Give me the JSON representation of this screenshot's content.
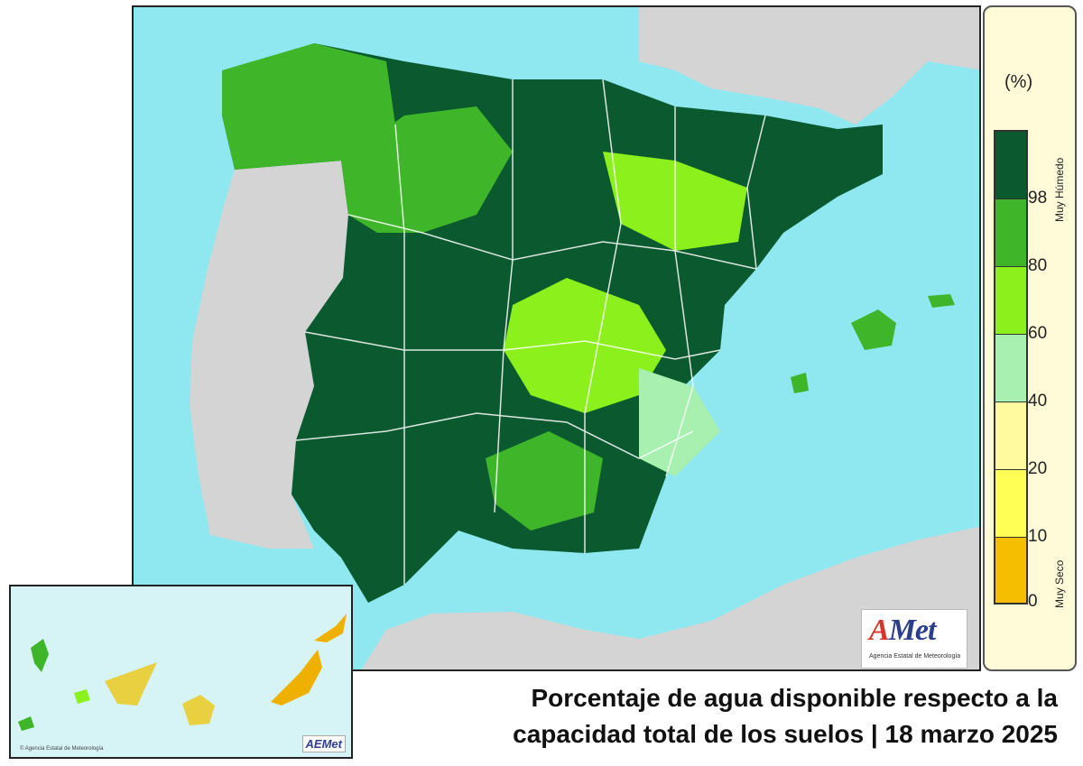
{
  "title": {
    "line1": "Porcentaje de agua disponible respecto a la",
    "line2": "capacidad total de los suelos | 18 marzo 2025"
  },
  "legend": {
    "unit": "(%)",
    "top_label": "Muy Húmedo",
    "bottom_label": "Muy Seco",
    "ticks": [
      "98",
      "80",
      "60",
      "40",
      "20",
      "10",
      "0"
    ],
    "classes": [
      {
        "range": "98-100",
        "color": "#0b5a2f"
      },
      {
        "range": "80-98",
        "color": "#3fb52a"
      },
      {
        "range": "60-80",
        "color": "#8cf01c"
      },
      {
        "range": "40-60",
        "color": "#a8f0b0"
      },
      {
        "range": "20-40",
        "color": "#fffaa0"
      },
      {
        "range": "10-20",
        "color": "#ffff55"
      },
      {
        "range": "0-10",
        "color": "#f5be00"
      }
    ]
  },
  "logo": {
    "text": "Met",
    "letter": "A",
    "subtitle": "Agencia Estatal de Meteorología"
  },
  "inset": {
    "credit": "© Agencia Estatal de Meteorología",
    "logo": "AEMet"
  },
  "colors": {
    "sea": "#8fe8f0",
    "land_foreign": "#d4d4d4",
    "borders": "#ffffff"
  }
}
